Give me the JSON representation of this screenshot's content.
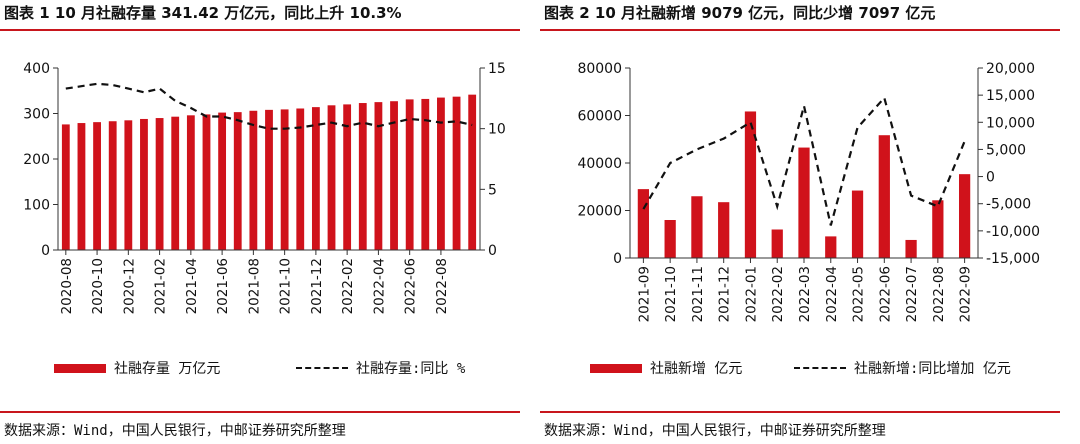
{
  "left": {
    "title": "图表 1 10 月社融存量 341.42 万亿元，同比上升 10.3%",
    "source": "数据来源：Wind，中国人民银行，中邮证券研究所整理",
    "legend": {
      "bar": "社融存量 万亿元",
      "line": "社融存量:同比 %"
    }
  },
  "right": {
    "title": "图表 2 10 月社融新增 9079 亿元，同比少增 7097 亿元",
    "source": "数据来源：Wind，中国人民银行，中邮证券研究所整理",
    "legend": {
      "bar": "社融新增 亿元",
      "line": "社融新增:同比增加 亿元"
    }
  },
  "colors": {
    "bar": "#d0121b",
    "line": "#111111",
    "rule": "#c8161d"
  },
  "chart_data": [
    {
      "type": "bar",
      "title": "图表 1 10 月社融存量 341.42 万亿元，同比上升 10.3%",
      "categories": [
        "2020-08",
        "2020-09",
        "2020-10",
        "2020-11",
        "2020-12",
        "2021-01",
        "2021-02",
        "2021-03",
        "2021-04",
        "2021-05",
        "2021-06",
        "2021-07",
        "2021-08",
        "2021-09",
        "2021-10",
        "2021-11",
        "2021-12",
        "2022-01",
        "2022-02",
        "2022-03",
        "2022-04",
        "2022-05",
        "2022-06",
        "2022-07",
        "2022-08",
        "2022-09",
        "2022-10"
      ],
      "tick_labels": [
        "2020-08",
        "2020-10",
        "2020-12",
        "2021-02",
        "2021-04",
        "2021-06",
        "2021-08",
        "2021-10",
        "2021-12",
        "2022-02",
        "2022-04",
        "2022-06",
        "2022-08"
      ],
      "series": [
        {
          "name": "社融存量 万亿元",
          "type": "bar",
          "axis": "left",
          "values": [
            276,
            279,
            281,
            283,
            285,
            288,
            290,
            293,
            296,
            298,
            302,
            303,
            306,
            308,
            309,
            311,
            314,
            318,
            320,
            323,
            325,
            327,
            331,
            332,
            335,
            337,
            341.42
          ]
        },
        {
          "name": "社融存量:同比 %",
          "type": "line",
          "axis": "right",
          "dash": true,
          "values": [
            13.3,
            13.5,
            13.7,
            13.6,
            13.3,
            13.0,
            13.3,
            12.3,
            11.7,
            11.0,
            11.0,
            10.7,
            10.3,
            10.0,
            10.0,
            10.1,
            10.3,
            10.5,
            10.2,
            10.5,
            10.2,
            10.5,
            10.8,
            10.7,
            10.5,
            10.6,
            10.3
          ]
        }
      ],
      "ylim": [
        0,
        400
      ],
      "yticks": [
        0,
        100,
        200,
        300,
        400
      ],
      "y2lim": [
        0,
        15
      ],
      "y2ticks": [
        0,
        5,
        10,
        15
      ],
      "grid": false
    },
    {
      "type": "bar",
      "title": "图表 2 10 月社融新增 9079 亿元，同比少增 7097 亿元",
      "categories": [
        "2021-09",
        "2021-10",
        "2021-11",
        "2021-12",
        "2022-01",
        "2022-02",
        "2022-03",
        "2022-04",
        "2022-05",
        "2022-06",
        "2022-07",
        "2022-08",
        "2022-09"
      ],
      "tick_labels": [
        "2021-09",
        "2021-10",
        "2021-11",
        "2021-12",
        "2022-01",
        "2022-02",
        "2022-03",
        "2022-04",
        "2022-05",
        "2022-06",
        "2022-07",
        "2022-08",
        "2022-09"
      ],
      "series": [
        {
          "name": "社融新增 亿元",
          "type": "bar",
          "axis": "left",
          "values": [
            29000,
            16000,
            26000,
            23500,
            61700,
            12000,
            46500,
            9100,
            28400,
            51700,
            7600,
            24300,
            35300
          ]
        },
        {
          "name": "社融新增:同比增加 亿元",
          "type": "line",
          "axis": "right",
          "dash": true,
          "values": [
            -6000,
            2500,
            5000,
            7000,
            10000,
            -5500,
            13000,
            -9000,
            9000,
            14500,
            -3500,
            -5500,
            6500
          ]
        }
      ],
      "ylim": [
        0,
        80000
      ],
      "yticks": [
        0,
        20000,
        40000,
        60000,
        80000
      ],
      "y2lim": [
        -15000,
        20000
      ],
      "y2ticks": [
        -15000,
        -10000,
        -5000,
        0,
        5000,
        10000,
        15000,
        20000
      ],
      "y2tick_labels": [
        "-15,000",
        "-10,000",
        "-5,000",
        "0",
        "5,000",
        "10,000",
        "15,000",
        "20,000"
      ],
      "grid": false
    }
  ]
}
